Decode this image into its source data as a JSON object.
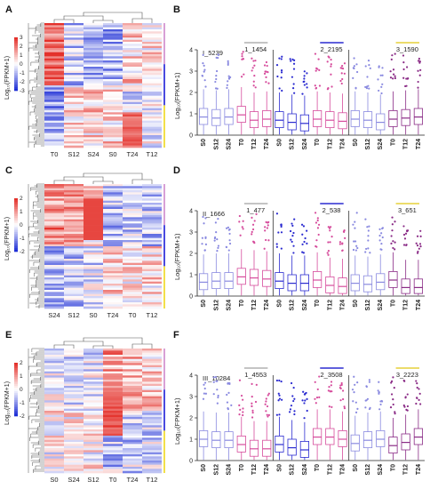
{
  "panels": {
    "heatmaps": [
      {
        "letter": "A",
        "columns": [
          "T0",
          "S12",
          "S24",
          "S0",
          "T24",
          "T12"
        ],
        "ticks": [
          "3",
          "2",
          "1",
          "0",
          "-1",
          "-2",
          "-3"
        ],
        "side_bars": [
          "#d8a0d6",
          "#4a4ae0",
          "#f2e04a"
        ]
      },
      {
        "letter": "C",
        "columns": [
          "S24",
          "S12",
          "S0",
          "T24",
          "T0",
          "T12"
        ],
        "ticks": [
          "2",
          "1",
          "0",
          "-1",
          "-2"
        ],
        "side_bars": [
          "#d8a0d6",
          "#4a4ae0",
          "#f2e04a"
        ]
      },
      {
        "letter": "E",
        "columns": [
          "S0",
          "S24",
          "S12",
          "T0",
          "T24",
          "T12"
        ],
        "ticks": [
          "2",
          "1",
          "0",
          "-1",
          "-2"
        ],
        "side_bars": [
          "#d8a0d6",
          "#4a4ae0",
          "#f2e04a"
        ]
      }
    ],
    "colorbar_label": "Log₁₀(FPKM+1)",
    "colors": {
      "high": "#e4312b",
      "mid": "#ffffff",
      "low": "#1e2fd6",
      "dendro": "#555555"
    }
  },
  "chart_data": [
    {
      "type": "box",
      "letter": "B",
      "title": "I_5239",
      "ylabel": "Log₁₀(FPKM+1)",
      "ylim": [
        0,
        4
      ],
      "yticks": [
        "0",
        "1",
        "2",
        "3",
        "4"
      ],
      "groups": [
        {
          "label": "1_1454",
          "bar_color": "#b0b0b0",
          "color": "#d64c9c",
          "categories": [
            "S0",
            "S12",
            "S24",
            "T0",
            "T12",
            "T24"
          ],
          "medians": [
            0.85,
            0.8,
            0.85,
            0.95,
            0.7,
            0.75
          ]
        },
        {
          "label": "2_2195",
          "bar_color": "#2b2bd0",
          "color": "#2b2bd0",
          "categories": [
            "S0",
            "S12",
            "S24",
            "T0",
            "T12",
            "T24"
          ],
          "medians": [
            0.7,
            0.6,
            0.55,
            0.75,
            0.7,
            0.65
          ]
        },
        {
          "label": "3_1590",
          "bar_color": "#e6d03a",
          "color": "#8a2b86",
          "categories": [
            "S0",
            "S12",
            "S24",
            "T0",
            "T12",
            "T24"
          ],
          "medians": [
            0.75,
            0.7,
            0.6,
            0.75,
            0.8,
            0.85
          ]
        }
      ]
    },
    {
      "type": "box",
      "letter": "D",
      "title": "II_1666",
      "ylabel": "Log₁₀(FPKM+1)",
      "ylim": [
        0,
        4
      ],
      "yticks": [
        "0",
        "1",
        "2",
        "3",
        "4"
      ],
      "groups": [
        {
          "label": "1_477",
          "bar_color": "#b0b0b0",
          "color": "#d64c9c",
          "categories": [
            "S0",
            "S12",
            "S24",
            "T0",
            "T12",
            "T24"
          ],
          "medians": [
            0.65,
            0.7,
            0.7,
            0.9,
            0.85,
            0.8
          ]
        },
        {
          "label": "2_538",
          "bar_color": "#2b2bd0",
          "color": "#2b2bd0",
          "categories": [
            "S0",
            "S12",
            "S24",
            "T0",
            "T12",
            "T24"
          ],
          "medians": [
            0.7,
            0.6,
            0.6,
            0.75,
            0.5,
            0.45
          ]
        },
        {
          "label": "3_651",
          "bar_color": "#e6d03a",
          "color": "#8a2b86",
          "categories": [
            "S0",
            "S12",
            "S24",
            "T0",
            "T12",
            "T24"
          ],
          "medians": [
            0.6,
            0.55,
            0.65,
            0.75,
            0.4,
            0.4
          ]
        }
      ]
    },
    {
      "type": "box",
      "letter": "F",
      "title": "III_10284",
      "ylabel": "Log₁₀(FPKM+1)",
      "ylim": [
        0,
        4
      ],
      "yticks": [
        "0",
        "1",
        "2",
        "3",
        "4"
      ],
      "groups": [
        {
          "label": "1_4553",
          "bar_color": "#b0b0b0",
          "color": "#d64c9c",
          "categories": [
            "S0",
            "S12",
            "S24",
            "T0",
            "T12",
            "T24"
          ],
          "medians": [
            1.0,
            0.95,
            0.95,
            0.75,
            0.55,
            0.55
          ]
        },
        {
          "label": "2_3508",
          "bar_color": "#2b2bd0",
          "color": "#2b2bd0",
          "categories": [
            "S0",
            "S12",
            "S24",
            "T0",
            "T12",
            "T24"
          ],
          "medians": [
            0.75,
            0.6,
            0.5,
            1.1,
            1.1,
            1.0
          ]
        },
        {
          "label": "3_2223",
          "bar_color": "#e6d03a",
          "color": "#8a2b86",
          "categories": [
            "S0",
            "S12",
            "S24",
            "T0",
            "T12",
            "T24"
          ],
          "medians": [
            0.8,
            0.95,
            1.0,
            0.7,
            0.85,
            1.1
          ]
        }
      ]
    }
  ]
}
